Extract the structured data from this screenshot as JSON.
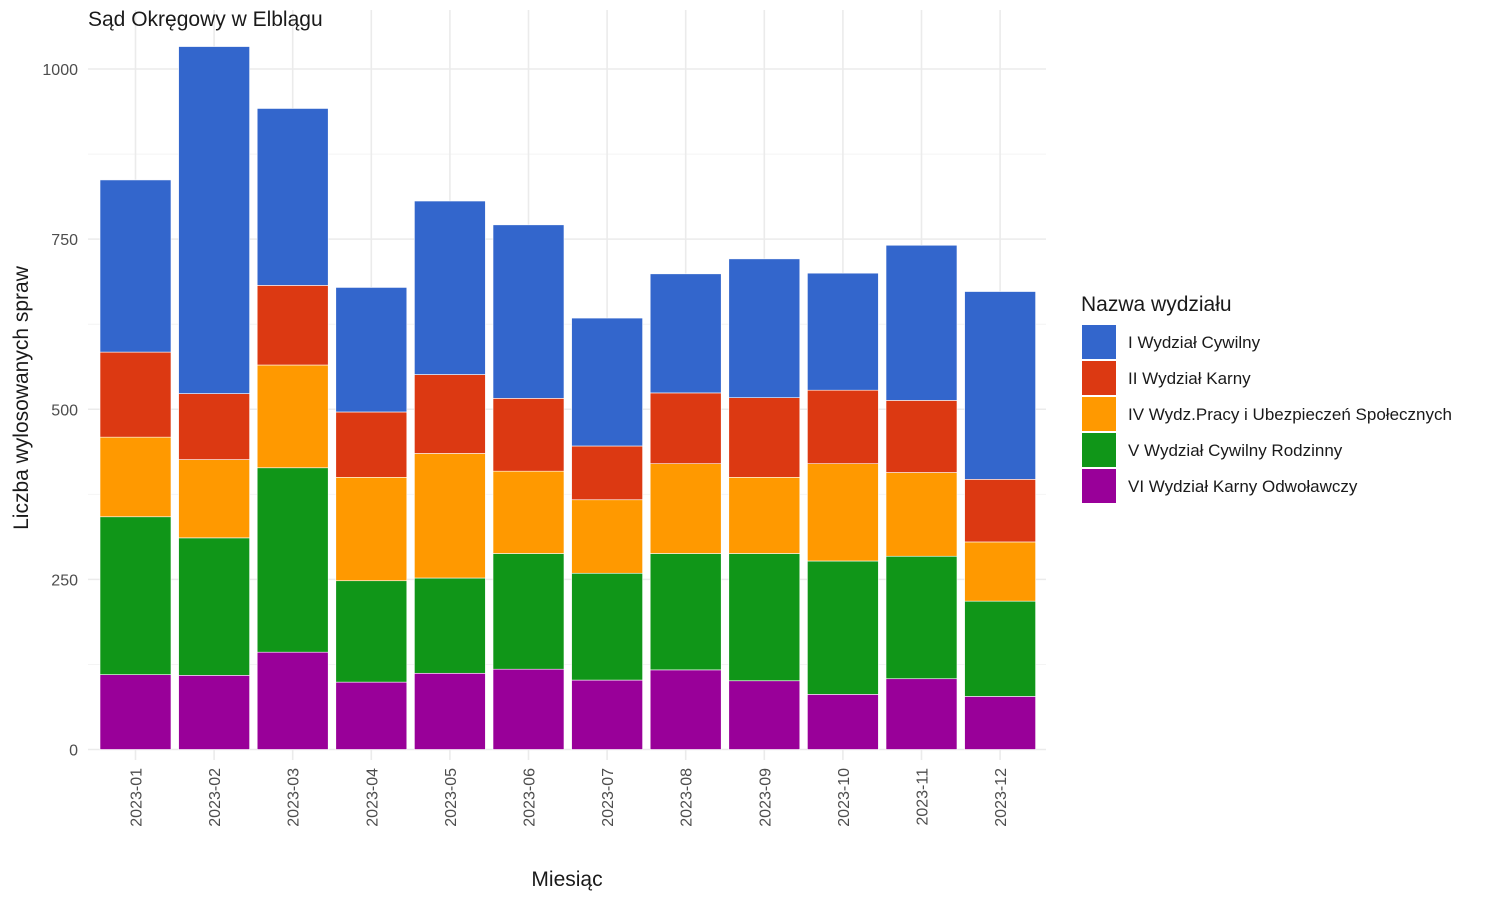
{
  "chart_data": {
    "type": "bar",
    "stacked": true,
    "title": "Sąd Okręgowy w Elblągu",
    "xlabel": "Miesiąc",
    "ylabel": "Liczba wylosowanych spraw",
    "ylim": [
      0,
      1050
    ],
    "yticks": [
      "0",
      "250",
      "500",
      "750",
      "1000"
    ],
    "grid": true,
    "legend_title": "Nazwa wydziału",
    "legend_position": "right",
    "categories": [
      "2023-01",
      "2023-02",
      "2023-03",
      "2023-04",
      "2023-05",
      "2023-06",
      "2023-07",
      "2023-08",
      "2023-09",
      "2023-10",
      "2023-11",
      "2023-12"
    ],
    "series": [
      {
        "name": "VI Wydział Karny Odwoławczy",
        "color": "#990099",
        "values": [
          110,
          109,
          143,
          99,
          112,
          118,
          102,
          117,
          101,
          81,
          104,
          78
        ]
      },
      {
        "name": "V Wydział Cywilny Rodzinny",
        "color": "#109618",
        "values": [
          232,
          202,
          271,
          149,
          140,
          170,
          157,
          171,
          187,
          196,
          180,
          140
        ]
      },
      {
        "name": "IV Wydz.Pracy i Ubezpieczeń Społecznych",
        "color": "#ff9900",
        "values": [
          117,
          115,
          151,
          152,
          183,
          121,
          108,
          132,
          112,
          143,
          123,
          87
        ]
      },
      {
        "name": "II Wydział Karny",
        "color": "#dc3912",
        "values": [
          125,
          97,
          117,
          96,
          116,
          107,
          79,
          104,
          117,
          108,
          106,
          92
        ]
      },
      {
        "name": "I Wydział Cywilny",
        "color": "#3366cc",
        "values": [
          253,
          510,
          260,
          183,
          255,
          255,
          188,
          175,
          204,
          172,
          228,
          276
        ]
      }
    ]
  }
}
